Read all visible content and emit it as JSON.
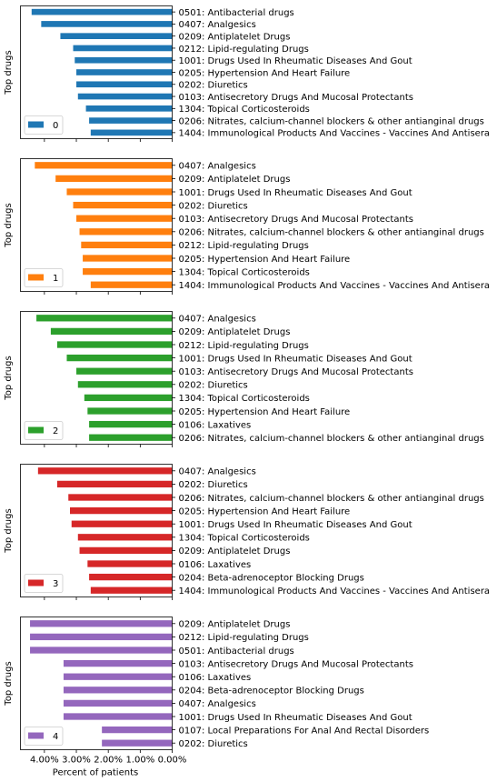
{
  "xlabel": "Percent of patients",
  "xticks": [
    "4.00%",
    "3.00%",
    "2.00%",
    "1.00%",
    "0.00%"
  ],
  "chart_data": [
    {
      "type": "bar",
      "orientation": "horizontal",
      "ylabel": "Top drugs",
      "legend_label": "0",
      "legend_position": "bottom-left",
      "color": "#1f77b4",
      "categories": [
        "0501: Antibacterial drugs",
        "0407: Analgesics",
        "0209: Antiplatelet Drugs",
        "0212: Lipid-regulating Drugs",
        "1001: Drugs Used In Rheumatic Diseases And Gout",
        "0205: Hypertension And Heart Failure",
        "0202: Diuretics",
        "0103: Antisecretory Drugs And Mucosal Protectants",
        "1304: Topical Corticosteroids",
        "0206: Nitrates, calcium-channel blockers & other antianginal drugs",
        "1404: Immunological Products And Vaccines - Vaccines And Antisera"
      ],
      "values": [
        4.4,
        4.1,
        3.5,
        3.1,
        3.05,
        3.0,
        3.0,
        2.95,
        2.7,
        2.6,
        2.55
      ]
    },
    {
      "type": "bar",
      "orientation": "horizontal",
      "ylabel": "Top drugs",
      "legend_label": "1",
      "legend_position": "bottom-left",
      "color": "#ff7f0e",
      "categories": [
        "0407: Analgesics",
        "0209: Antiplatelet Drugs",
        "1001: Drugs Used In Rheumatic Diseases And Gout",
        "0202: Diuretics",
        "0103: Antisecretory Drugs And Mucosal Protectants",
        "0206: Nitrates, calcium-channel blockers & other antianginal drugs",
        "0212: Lipid-regulating Drugs",
        "0205: Hypertension And Heart Failure",
        "1304: Topical Corticosteroids",
        "1404: Immunological Products And Vaccines - Vaccines And Antisera"
      ],
      "values": [
        4.3,
        3.65,
        3.3,
        3.1,
        3.0,
        2.9,
        2.85,
        2.8,
        2.8,
        2.55
      ]
    },
    {
      "type": "bar",
      "orientation": "horizontal",
      "ylabel": "Top drugs",
      "legend_label": "2",
      "legend_position": "bottom-left",
      "color": "#2ca02c",
      "categories": [
        "0407: Analgesics",
        "0209: Antiplatelet Drugs",
        "0212: Lipid-regulating Drugs",
        "1001: Drugs Used In Rheumatic Diseases And Gout",
        "0103: Antisecretory Drugs And Mucosal Protectants",
        "0202: Diuretics",
        "1304: Topical Corticosteroids",
        "0205: Hypertension And Heart Failure",
        "0106: Laxatives",
        "0206: Nitrates, calcium-channel blockers & other antianginal drugs"
      ],
      "values": [
        4.25,
        3.8,
        3.6,
        3.3,
        3.0,
        2.95,
        2.75,
        2.65,
        2.6,
        2.6
      ]
    },
    {
      "type": "bar",
      "orientation": "horizontal",
      "ylabel": "Top drugs",
      "legend_label": "3",
      "legend_position": "bottom-left",
      "color": "#d62728",
      "categories": [
        "0407: Analgesics",
        "0202: Diuretics",
        "0206: Nitrates, calcium-channel blockers & other antianginal drugs",
        "0205: Hypertension And Heart Failure",
        "1001: Drugs Used In Rheumatic Diseases And Gout",
        "1304: Topical Corticosteroids",
        "0209: Antiplatelet Drugs",
        "0106: Laxatives",
        "0204: Beta-adrenoceptor Blocking Drugs",
        "1404: Immunological Products And Vaccines - Vaccines And Antisera"
      ],
      "values": [
        4.2,
        3.6,
        3.25,
        3.2,
        3.15,
        2.95,
        2.9,
        2.65,
        2.6,
        2.55
      ]
    },
    {
      "type": "bar",
      "orientation": "horizontal",
      "ylabel": "Top drugs",
      "legend_label": "4",
      "legend_position": "bottom-left",
      "color": "#9467bd",
      "categories": [
        "0209: Antiplatelet Drugs",
        "0212: Lipid-regulating Drugs",
        "0501: Antibacterial drugs",
        "0103: Antisecretory Drugs And Mucosal Protectants",
        "0106: Laxatives",
        "0204: Beta-adrenoceptor Blocking Drugs",
        "0407: Analgesics",
        "1001: Drugs Used In Rheumatic Diseases And Gout",
        "0107: Local Preparations For Anal And Rectal Disorders",
        "0202: Diuretics"
      ],
      "values": [
        4.45,
        4.45,
        4.45,
        3.4,
        3.4,
        3.4,
        3.4,
        3.4,
        2.2,
        2.2
      ]
    }
  ]
}
